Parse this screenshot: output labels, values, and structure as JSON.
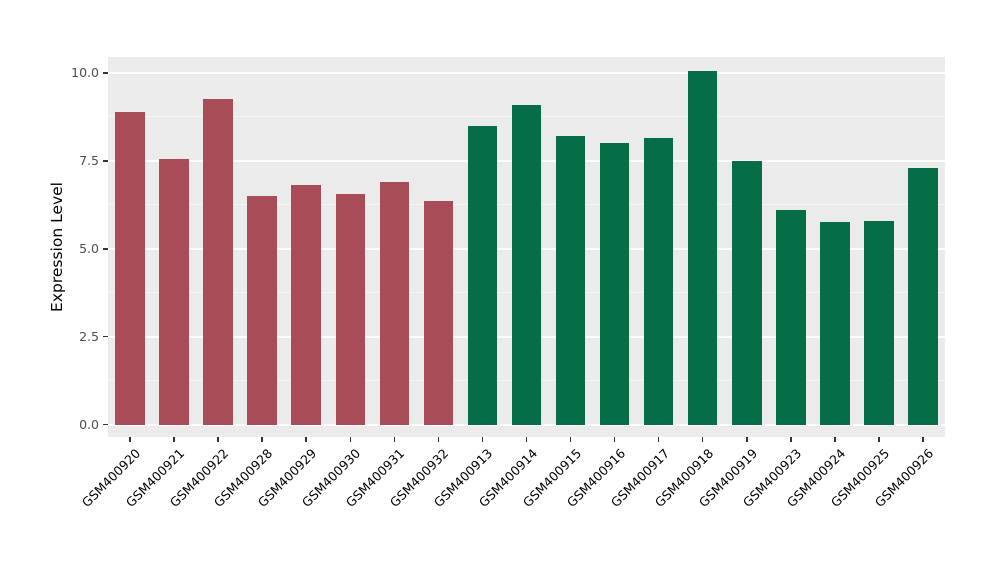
{
  "chart_data": {
    "type": "bar",
    "title": "",
    "xlabel": "",
    "ylabel": "Expression Level",
    "ylim": [
      0,
      10.45
    ],
    "grid": "on",
    "legend": "none",
    "panel_background": "#EBEBEB",
    "yticks": [
      0.0,
      2.5,
      5.0,
      7.5,
      10.0
    ],
    "ytick_labels": [
      "0.0",
      "2.5",
      "5.0",
      "7.5",
      "10.0"
    ],
    "yticks_minor": [
      1.25,
      3.75,
      6.25,
      8.75
    ],
    "categories": [
      "GSM400920",
      "GSM400921",
      "GSM400922",
      "GSM400928",
      "GSM400929",
      "GSM400930",
      "GSM400931",
      "GSM400932",
      "GSM400913",
      "GSM400914",
      "GSM400915",
      "GSM400916",
      "GSM400917",
      "GSM400918",
      "GSM400919",
      "GSM400923",
      "GSM400924",
      "GSM400925",
      "GSM400926"
    ],
    "values": [
      8.9,
      7.55,
      9.25,
      6.5,
      6.8,
      6.55,
      6.9,
      6.35,
      8.5,
      9.1,
      8.2,
      8.0,
      8.15,
      10.05,
      7.5,
      6.1,
      5.75,
      5.8,
      7.3
    ],
    "bar_groups": [
      "A",
      "A",
      "A",
      "A",
      "A",
      "A",
      "A",
      "A",
      "B",
      "B",
      "B",
      "B",
      "B",
      "B",
      "B",
      "B",
      "B",
      "B",
      "B"
    ],
    "group_colors": {
      "A": "#A84D58",
      "B": "#056E47"
    }
  }
}
